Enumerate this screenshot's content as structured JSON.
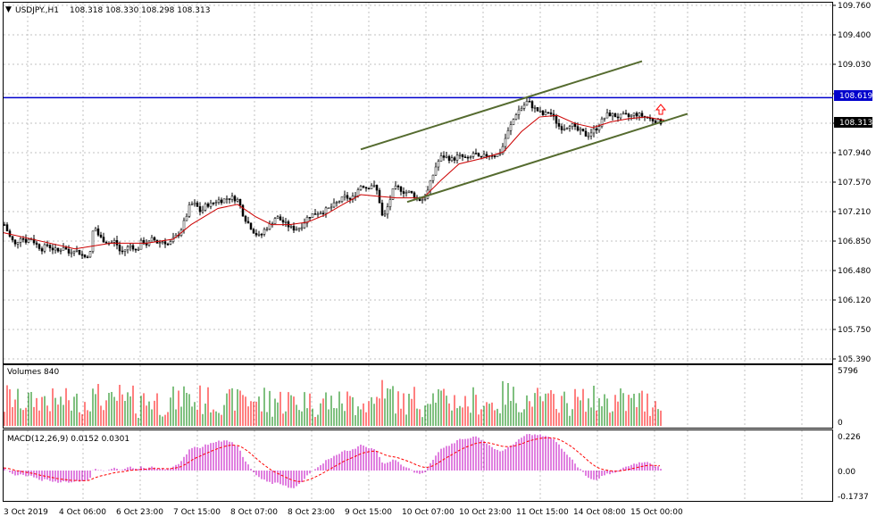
{
  "header": {
    "symbol": "USDJPY.,H1",
    "ohlc": "108.318 108.330 108.298 108.313"
  },
  "volumes": {
    "label": "Volumes 840",
    "axis_ticks": [
      "5796",
      "0"
    ],
    "colors": {
      "up": "#008000",
      "down": "#ff0000"
    }
  },
  "macd": {
    "label": "MACD(12,26,9) 0.0152 0.0301",
    "axis_ticks": [
      "0.226",
      "0.00",
      "-0.1737"
    ],
    "color": "#c000c0",
    "signal_color": "#ff0000"
  },
  "price_levels": {
    "resistance": "108.619",
    "current": "108.313",
    "resistance_color": "#0000cc"
  },
  "chart_data": {
    "type": "candlestick",
    "y_ticks": [
      "109.760",
      "109.400",
      "109.030",
      "108.660",
      "108.300",
      "107.940",
      "107.570",
      "107.210",
      "106.850",
      "106.480",
      "106.120",
      "105.750",
      "105.390"
    ],
    "x_labels": [
      "3 Oct 2019",
      "4 Oct 06:00",
      "6 Oct 23:00",
      "7 Oct 15:00",
      "8 Oct 07:00",
      "8 Oct 23:00",
      "9 Oct 15:00",
      "10 Oct 07:00",
      "10 Oct 23:00",
      "11 Oct 15:00",
      "14 Oct 08:00",
      "15 Oct 00:00"
    ],
    "ylim": [
      105.39,
      109.76
    ],
    "close_path": [
      [
        0,
        107.05
      ],
      [
        6,
        106.9
      ],
      [
        12,
        106.8
      ],
      [
        18,
        106.9
      ],
      [
        24,
        106.85
      ],
      [
        30,
        106.88
      ],
      [
        36,
        106.8
      ],
      [
        42,
        106.75
      ],
      [
        48,
        106.8
      ],
      [
        54,
        106.75
      ],
      [
        60,
        106.72
      ],
      [
        66,
        106.78
      ],
      [
        72,
        106.7
      ],
      [
        78,
        106.75
      ],
      [
        84,
        106.7
      ],
      [
        90,
        106.65
      ],
      [
        96,
        106.7
      ],
      [
        100,
        107.05
      ],
      [
        106,
        106.9
      ],
      [
        112,
        106.85
      ],
      [
        118,
        106.82
      ],
      [
        124,
        106.85
      ],
      [
        130,
        106.7
      ],
      [
        136,
        106.75
      ],
      [
        142,
        106.8
      ],
      [
        148,
        106.72
      ],
      [
        154,
        106.85
      ],
      [
        160,
        106.8
      ],
      [
        166,
        106.88
      ],
      [
        172,
        106.82
      ],
      [
        178,
        106.85
      ],
      [
        184,
        106.8
      ],
      [
        190,
        106.88
      ],
      [
        196,
        106.95
      ],
      [
        202,
        107.1
      ],
      [
        208,
        107.3
      ],
      [
        214,
        107.3
      ],
      [
        220,
        107.2
      ],
      [
        226,
        107.3
      ],
      [
        232,
        107.3
      ],
      [
        238,
        107.35
      ],
      [
        244,
        107.35
      ],
      [
        250,
        107.38
      ],
      [
        256,
        107.38
      ],
      [
        262,
        107.35
      ],
      [
        268,
        107.15
      ],
      [
        274,
        107.05
      ],
      [
        280,
        106.95
      ],
      [
        286,
        106.9
      ],
      [
        292,
        107.0
      ],
      [
        298,
        107.05
      ],
      [
        304,
        107.15
      ],
      [
        310,
        107.1
      ],
      [
        316,
        107.05
      ],
      [
        322,
        107.0
      ],
      [
        328,
        107.0
      ],
      [
        334,
        107.05
      ],
      [
        340,
        107.15
      ],
      [
        346,
        107.18
      ],
      [
        352,
        107.2
      ],
      [
        358,
        107.22
      ],
      [
        364,
        107.25
      ],
      [
        370,
        107.3
      ],
      [
        376,
        107.35
      ],
      [
        382,
        107.4
      ],
      [
        388,
        107.35
      ],
      [
        394,
        107.45
      ],
      [
        400,
        107.55
      ],
      [
        406,
        107.5
      ],
      [
        412,
        107.55
      ],
      [
        418,
        107.45
      ],
      [
        424,
        107.1
      ],
      [
        430,
        107.3
      ],
      [
        436,
        107.5
      ],
      [
        442,
        107.5
      ],
      [
        448,
        107.45
      ],
      [
        454,
        107.45
      ],
      [
        460,
        107.4
      ],
      [
        466,
        107.35
      ],
      [
        472,
        107.4
      ],
      [
        478,
        107.6
      ],
      [
        484,
        107.8
      ],
      [
        490,
        107.9
      ],
      [
        496,
        107.88
      ],
      [
        502,
        107.85
      ],
      [
        508,
        107.9
      ],
      [
        514,
        107.88
      ],
      [
        520,
        107.85
      ],
      [
        526,
        107.95
      ],
      [
        532,
        107.85
      ],
      [
        538,
        107.9
      ],
      [
        544,
        107.92
      ],
      [
        550,
        107.9
      ],
      [
        556,
        107.95
      ],
      [
        562,
        108.15
      ],
      [
        568,
        108.3
      ],
      [
        574,
        108.45
      ],
      [
        580,
        108.5
      ],
      [
        586,
        108.58
      ],
      [
        592,
        108.5
      ],
      [
        598,
        108.45
      ],
      [
        604,
        108.4
      ],
      [
        610,
        108.45
      ],
      [
        616,
        108.35
      ],
      [
        622,
        108.25
      ],
      [
        628,
        108.25
      ],
      [
        634,
        108.3
      ],
      [
        640,
        108.22
      ],
      [
        646,
        108.2
      ],
      [
        652,
        108.15
      ],
      [
        658,
        108.2
      ],
      [
        664,
        108.25
      ],
      [
        670,
        108.35
      ],
      [
        676,
        108.42
      ],
      [
        682,
        108.4
      ],
      [
        688,
        108.38
      ],
      [
        694,
        108.4
      ],
      [
        700,
        108.38
      ],
      [
        706,
        108.42
      ],
      [
        712,
        108.4
      ],
      [
        718,
        108.38
      ],
      [
        724,
        108.35
      ],
      [
        730,
        108.33
      ],
      [
        736,
        108.313
      ]
    ],
    "ma_path": [
      [
        0,
        106.95
      ],
      [
        40,
        106.85
      ],
      [
        80,
        106.75
      ],
      [
        120,
        106.82
      ],
      [
        160,
        106.82
      ],
      [
        190,
        106.87
      ],
      [
        210,
        107.05
      ],
      [
        240,
        107.25
      ],
      [
        262,
        107.3
      ],
      [
        282,
        107.15
      ],
      [
        300,
        107.05
      ],
      [
        320,
        107.05
      ],
      [
        340,
        107.08
      ],
      [
        360,
        107.17
      ],
      [
        380,
        107.3
      ],
      [
        400,
        107.42
      ],
      [
        420,
        107.4
      ],
      [
        440,
        107.38
      ],
      [
        470,
        107.38
      ],
      [
        490,
        107.6
      ],
      [
        510,
        107.8
      ],
      [
        540,
        107.88
      ],
      [
        560,
        107.95
      ],
      [
        580,
        108.2
      ],
      [
        600,
        108.38
      ],
      [
        620,
        108.4
      ],
      [
        640,
        108.3
      ],
      [
        660,
        108.25
      ],
      [
        680,
        108.32
      ],
      [
        700,
        108.36
      ],
      [
        720,
        108.38
      ],
      [
        740,
        108.34
      ]
    ],
    "channel_upper": [
      [
        400,
        107.98
      ],
      [
        715,
        109.07
      ]
    ],
    "channel_lower": [
      [
        452,
        107.33
      ],
      [
        766,
        108.42
      ]
    ],
    "resistance_level": 108.619
  }
}
